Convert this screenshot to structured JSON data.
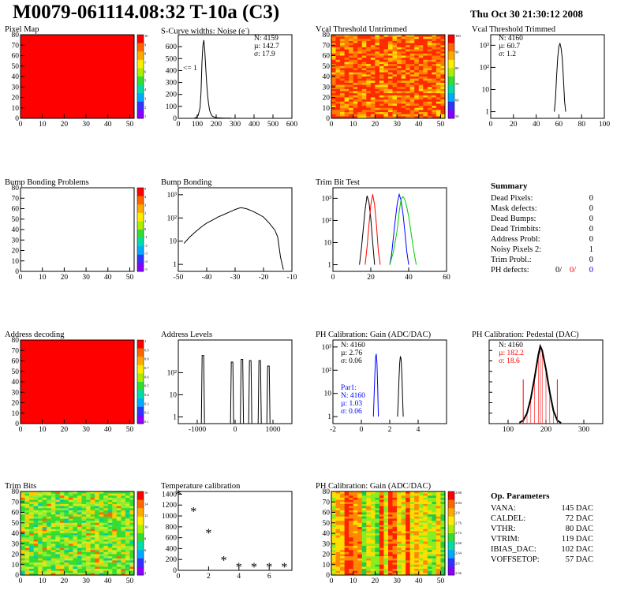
{
  "title": "M0079-061114.08:32 T-10a (C3)",
  "date": "Thu Oct 30 21:30:12 2008",
  "colors": {
    "red": "#ff0000",
    "blue": "#0000ff",
    "green": "#00cc00",
    "black": "#000000"
  },
  "panels": {
    "pixel_map": {
      "title": "Pixel Map"
    },
    "scurve": {
      "title": "S-Curve widths: Noise (e-)",
      "stats": [
        "N: 4159",
        "µ: 142.7",
        "σ: 17.9"
      ],
      "underflow": "<= 1"
    },
    "vcal_untrimmed": {
      "title": "Vcal Threshold Untrimmed"
    },
    "vcal_trimmed": {
      "title": "Vcal Threshold Trimmed",
      "stats": [
        "N: 4160",
        "µ: 60.7",
        "σ: 1.2"
      ]
    },
    "bump_problems": {
      "title": "Bump Bonding Problems"
    },
    "bump_bonding": {
      "title": "Bump Bonding"
    },
    "trim_bit_test": {
      "title": "Trim Bit Test"
    },
    "summary": {
      "title": "Summary",
      "rows": [
        {
          "label": "Dead Pixels:",
          "value": "0"
        },
        {
          "label": "Mask defects:",
          "value": "0"
        },
        {
          "label": "Dead Bumps:",
          "value": "0"
        },
        {
          "label": "Dead Trimbits:",
          "value": "0"
        },
        {
          "label": "Address Probl:",
          "value": "0"
        },
        {
          "label": "Noisy Pixels 2:",
          "value": "1"
        },
        {
          "label": "Trim Probl.:",
          "value": "0"
        }
      ],
      "ph_label": "PH defects:",
      "ph_values": [
        "0/",
        "0/",
        "0"
      ]
    },
    "address_decoding": {
      "title": "Address decoding"
    },
    "address_levels": {
      "title": "Address Levels"
    },
    "ph_gain": {
      "title": "PH Calibration: Gain (ADC/DAC)",
      "stats": [
        "N: 4160",
        "µ: 2.76",
        "σ: 0.06"
      ],
      "par1": [
        "Par1:",
        "N: 4160",
        "µ: 1.03",
        "σ: 0.06"
      ]
    },
    "ph_pedestal": {
      "title": "PH Calibration: Pedestal (DAC)",
      "stats": [
        "N: 4160",
        "µ: 182.2",
        "σ: 18.6"
      ]
    },
    "trim_bits": {
      "title": "Trim Bits"
    },
    "temperature": {
      "title": "Temperature calibration"
    },
    "ph_gain_map": {
      "title": "PH Calibration: Gain (ADC/DAC)"
    },
    "op_params": {
      "title": "Op. Parameters",
      "rows": [
        {
          "label": "VANA:",
          "value": "145 DAC"
        },
        {
          "label": "CALDEL:",
          "value": "72 DAC"
        },
        {
          "label": "VTHR:",
          "value": "80 DAC"
        },
        {
          "label": "VTRIM:",
          "value": "119 DAC"
        },
        {
          "label": "IBIAS_DAC:",
          "value": "102 DAC"
        },
        {
          "label": "VOFFSETOP:",
          "value": "57 DAC"
        }
      ]
    }
  },
  "chart_data": [
    {
      "id": "pixel_map",
      "type": "heatmap",
      "title": "Pixel Map",
      "xlim": [
        0,
        52
      ],
      "ylim": [
        0,
        80
      ],
      "xticks": [
        "0",
        "10",
        "20",
        "30",
        "40",
        "50"
      ],
      "yticks": [
        "0",
        "10",
        "20",
        "30",
        "40",
        "50",
        "60",
        "70",
        "80"
      ],
      "palette": "solid-red",
      "zscale_ticks": [
        "10",
        "9",
        "8",
        "7",
        "6",
        "5",
        "4",
        "3",
        "2",
        "1"
      ]
    },
    {
      "id": "scurve",
      "type": "line",
      "title": "S-Curve widths: Noise (e-)",
      "xlim": [
        0,
        600
      ],
      "ylim": [
        0,
        700
      ],
      "xticks": [
        "0",
        "100",
        "200",
        "300",
        "400",
        "500",
        "600"
      ],
      "yticks": [
        "0",
        "100",
        "200",
        "300",
        "400",
        "500",
        "600"
      ],
      "x": [
        85,
        95,
        105,
        115,
        120,
        125,
        130,
        135,
        140,
        145,
        150,
        155,
        160,
        165,
        170,
        175,
        180,
        190,
        200,
        210,
        220,
        240,
        260,
        280
      ],
      "values": [
        2,
        8,
        25,
        90,
        220,
        470,
        610,
        655,
        560,
        420,
        290,
        190,
        120,
        70,
        45,
        30,
        18,
        10,
        6,
        4,
        3,
        2,
        1,
        1
      ]
    },
    {
      "id": "vcal_untrimmed",
      "type": "heatmap",
      "title": "Vcal Threshold Untrimmed",
      "xlim": [
        0,
        52
      ],
      "ylim": [
        0,
        80
      ],
      "xticks": [
        "0",
        "10",
        "20",
        "30",
        "40",
        "50"
      ],
      "yticks": [
        "0",
        "10",
        "20",
        "30",
        "40",
        "50",
        "60",
        "70",
        "80"
      ],
      "palette": "noisy-orange-red",
      "zscale_ticks": [
        "100",
        "90",
        "80",
        "70",
        "60",
        "50"
      ]
    },
    {
      "id": "vcal_trimmed",
      "type": "line",
      "log_y": true,
      "title": "Vcal Threshold Trimmed",
      "xlim": [
        0,
        100
      ],
      "ylim": [
        0.5,
        3000
      ],
      "xticks": [
        "0",
        "20",
        "40",
        "60",
        "80",
        "100"
      ],
      "yticks": [
        "1",
        "10",
        "10²",
        "10³"
      ],
      "x": [
        56,
        57,
        58,
        59,
        60,
        61,
        62,
        63,
        64,
        65,
        66
      ],
      "values": [
        1,
        4,
        40,
        300,
        900,
        1200,
        700,
        250,
        30,
        3,
        1
      ]
    },
    {
      "id": "bump_problems",
      "type": "heatmap",
      "title": "Bump Bonding Problems",
      "xlim": [
        0,
        52
      ],
      "ylim": [
        0,
        80
      ],
      "xticks": [
        "0",
        "10",
        "20",
        "30",
        "40",
        "50"
      ],
      "yticks": [
        "0",
        "10",
        "20",
        "30",
        "40",
        "50",
        "60",
        "70",
        "80"
      ],
      "palette": "empty",
      "zscale_ticks": [
        "5",
        "4",
        "3",
        "2",
        "1",
        "0",
        "-1",
        "-2",
        "-3",
        "-4",
        "-5"
      ]
    },
    {
      "id": "bump_bonding",
      "type": "line",
      "log_y": true,
      "title": "Bump Bonding",
      "xlim": [
        -50,
        -10
      ],
      "ylim": [
        0.5,
        2000
      ],
      "xticks": [
        "-50",
        "-40",
        "-30",
        "-20",
        "-10"
      ],
      "yticks": [
        "1",
        "10",
        "10²",
        "10³"
      ],
      "x": [
        -48,
        -46,
        -44,
        -42,
        -40,
        -38,
        -36,
        -34,
        -32,
        -30,
        -28,
        -26,
        -24,
        -22,
        -20,
        -18,
        -16,
        -15,
        -14,
        -13
      ],
      "values": [
        8,
        15,
        25,
        40,
        60,
        80,
        110,
        140,
        180,
        230,
        280,
        250,
        200,
        150,
        110,
        60,
        30,
        15,
        2,
        0.6
      ]
    },
    {
      "id": "trim_bit_test",
      "type": "line",
      "log_y": true,
      "title": "Trim Bit Test",
      "xlim": [
        0,
        60
      ],
      "ylim": [
        0.5,
        3000
      ],
      "xticks": [
        "0",
        "20",
        "40",
        "60"
      ],
      "yticks": [
        "1",
        "10",
        "10²",
        "10³"
      ],
      "series": [
        {
          "color": "black",
          "x": [
            14,
            15,
            16,
            17,
            18,
            19,
            20,
            21,
            22
          ],
          "values": [
            1,
            5,
            40,
            300,
            1300,
            700,
            120,
            10,
            1
          ]
        },
        {
          "color": "red",
          "x": [
            17,
            18,
            19,
            20,
            21,
            22,
            23,
            24,
            25
          ],
          "values": [
            1,
            6,
            60,
            500,
            1500,
            500,
            60,
            4,
            1
          ]
        },
        {
          "color": "blue",
          "x": [
            30,
            31,
            32,
            33,
            34,
            35,
            36,
            37,
            38,
            39,
            40
          ],
          "values": [
            1,
            3,
            20,
            120,
            600,
            1500,
            800,
            200,
            30,
            4,
            1
          ]
        },
        {
          "color": "green",
          "x": [
            30,
            32,
            34,
            35,
            36,
            37,
            38,
            39,
            40,
            41,
            42,
            43,
            44
          ],
          "values": [
            1,
            4,
            40,
            250,
            900,
            1200,
            900,
            400,
            150,
            40,
            10,
            3,
            1
          ]
        }
      ]
    },
    {
      "id": "address_decoding",
      "type": "heatmap",
      "title": "Address decoding",
      "xlim": [
        0,
        52
      ],
      "ylim": [
        0,
        80
      ],
      "xticks": [
        "0",
        "10",
        "20",
        "30",
        "40",
        "50"
      ],
      "yticks": [
        "0",
        "10",
        "20",
        "30",
        "40",
        "50",
        "60",
        "70",
        "80"
      ],
      "palette": "solid-red",
      "zscale_ticks": [
        "1",
        "0.9",
        "0.8",
        "0.7",
        "0.6",
        "0.5",
        "0.4",
        "0.3",
        "0.2",
        "0.1"
      ]
    },
    {
      "id": "address_levels",
      "type": "bar",
      "log_y": true,
      "title": "Address Levels",
      "xlim": [
        -1500,
        1500
      ],
      "ylim": [
        0.5,
        3000
      ],
      "xticks": [
        "-1000",
        "0",
        "1000"
      ],
      "yticks": [
        "1",
        "10",
        "10²"
      ],
      "x": [
        -850,
        -80,
        180,
        400,
        650,
        880
      ],
      "values": [
        600,
        300,
        400,
        350,
        350,
        200
      ]
    },
    {
      "id": "ph_gain",
      "type": "line",
      "log_y": true,
      "title": "PH Calibration: Gain (ADC/DAC)",
      "xlim": [
        -2,
        6
      ],
      "ylim": [
        0.5,
        2000
      ],
      "xticks": [
        "-2",
        "0",
        "2",
        "4"
      ],
      "yticks": [
        "1",
        "10",
        "10²",
        "10³"
      ],
      "series": [
        {
          "color": "black",
          "x": [
            2.55,
            2.6,
            2.65,
            2.7,
            2.75,
            2.8,
            2.85,
            2.9,
            2.95
          ],
          "values": [
            1,
            5,
            40,
            200,
            400,
            300,
            80,
            8,
            1
          ]
        },
        {
          "color": "blue",
          "x": [
            0.85,
            0.9,
            0.95,
            1.0,
            1.05,
            1.1,
            1.15,
            1.2
          ],
          "values": [
            1,
            8,
            60,
            350,
            500,
            200,
            20,
            1
          ]
        }
      ]
    },
    {
      "id": "ph_pedestal",
      "type": "scatter",
      "title": "PH Calibration: Pedestal (DAC)",
      "xlim": [
        50,
        350
      ],
      "ylim": [
        0,
        400
      ],
      "xticks": [
        "100",
        "200",
        "300"
      ],
      "yticks": [
        "0",
        "50",
        "100",
        "150",
        "200",
        "250",
        "300",
        "350",
        "400"
      ],
      "x": [
        130,
        140,
        150,
        160,
        170,
        180,
        185,
        190,
        200,
        210,
        220,
        230,
        240
      ],
      "values": [
        5,
        15,
        50,
        120,
        220,
        330,
        370,
        350,
        260,
        150,
        60,
        15,
        3
      ],
      "fit_color": "red"
    },
    {
      "id": "trim_bits",
      "type": "heatmap",
      "title": "Trim Bits",
      "xlim": [
        0,
        52
      ],
      "ylim": [
        0,
        80
      ],
      "xticks": [
        "0",
        "10",
        "20",
        "30",
        "40",
        "50"
      ],
      "yticks": [
        "0",
        "10",
        "20",
        "30",
        "40",
        "50",
        "60",
        "70",
        "80"
      ],
      "palette": "noisy-green",
      "zscale_ticks": [
        "16",
        "14",
        "12",
        "10",
        "8",
        "6",
        "4",
        "2"
      ]
    },
    {
      "id": "temperature",
      "type": "scatter",
      "title": "Temperature calibration",
      "xlim": [
        0,
        7.5
      ],
      "ylim": [
        0,
        1450
      ],
      "xticks": [
        "0",
        "2",
        "4",
        "6"
      ],
      "yticks": [
        "0",
        "200",
        "400",
        "600",
        "800",
        "1000",
        "1200",
        "1400"
      ],
      "x": [
        0,
        1,
        2,
        3,
        4,
        5,
        6,
        7
      ],
      "values": [
        1390,
        1080,
        680,
        180,
        60,
        55,
        55,
        55
      ]
    },
    {
      "id": "ph_gain_map",
      "type": "heatmap",
      "title": "PH Calibration: Gain (ADC/DAC)",
      "xlim": [
        0,
        52
      ],
      "ylim": [
        0,
        80
      ],
      "xticks": [
        "0",
        "10",
        "20",
        "30",
        "40",
        "50"
      ],
      "yticks": [
        "0",
        "10",
        "20",
        "30",
        "40",
        "50",
        "60",
        "70",
        "80"
      ],
      "palette": "column-stripes",
      "zscale_ticks": [
        "2.88",
        "2.84",
        "2.8",
        "2.76",
        "2.72",
        "2.68",
        "2.64",
        "2.6",
        "2.56"
      ]
    }
  ]
}
